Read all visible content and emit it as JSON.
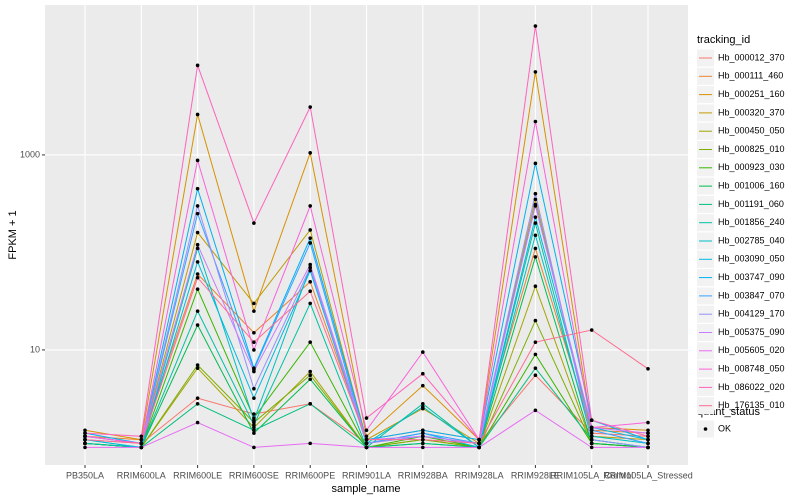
{
  "chart_data": {
    "type": "line",
    "x_label": "sample_name",
    "y_label": "FPKM + 1",
    "categories": [
      "PB350LA",
      "RRIM600LA",
      "RRIM600LE",
      "RRIM600SE",
      "RRIM600PE",
      "RRIM901LA",
      "RRIM928BA",
      "RRIM928LA",
      "RRIM928LE",
      "RRIM105LA_Control",
      "RRIM105LA_Stressed"
    ],
    "ylim": [
      0.66,
      34500
    ],
    "yticks": [
      10,
      1000
    ],
    "log_y": true,
    "grid": true,
    "legend_title": "tracking_id",
    "point_legend": {
      "title": "quant_status",
      "labels": [
        "OK"
      ]
    },
    "series": [
      {
        "name": "Hb_000012_370",
        "color": "#F8766D",
        "values": [
          1.2,
          1.1,
          3.2,
          2.2,
          2.8,
          1.1,
          1.3,
          1.1,
          5.5,
          1.4,
          1.3
        ]
      },
      {
        "name": "Hb_000111_460",
        "color": "#EA8331",
        "values": [
          1.3,
          1.2,
          60,
          15,
          50,
          1.2,
          1.5,
          1.2,
          110,
          1.5,
          1.4
        ]
      },
      {
        "name": "Hb_000251_160",
        "color": "#D89000",
        "values": [
          1.5,
          1.2,
          2600,
          25,
          1050,
          1.3,
          4.3,
          1.2,
          7100,
          1.6,
          1.5
        ]
      },
      {
        "name": "Hb_000320_370",
        "color": "#C09B00",
        "values": [
          1.3,
          1.1,
          160,
          30,
          170,
          1.2,
          2.5,
          1.1,
          350,
          1.3,
          1.2
        ]
      },
      {
        "name": "Hb_000450_050",
        "color": "#A3A500",
        "values": [
          1.1,
          1.0,
          6.5,
          1.6,
          6,
          1.0,
          1.2,
          1.0,
          45,
          1.1,
          1.0
        ]
      },
      {
        "name": "Hb_000825_010",
        "color": "#7CAE00",
        "values": [
          1.1,
          1.0,
          7,
          1.8,
          5.5,
          1.0,
          1.2,
          1.0,
          20,
          1.1,
          1.0
        ]
      },
      {
        "name": "Hb_000923_030",
        "color": "#39B600",
        "values": [
          1.1,
          1.0,
          42,
          2,
          12,
          1.0,
          1.3,
          1.0,
          9,
          1.1,
          1.0
        ]
      },
      {
        "name": "Hb_001006_160",
        "color": "#00BB4E",
        "values": [
          1.1,
          1.0,
          18,
          1.4,
          5,
          1.0,
          1.1,
          1.0,
          90,
          1.1,
          1.0
        ]
      },
      {
        "name": "Hb_001191_060",
        "color": "#00BF7D",
        "values": [
          1.1,
          1.0,
          2.8,
          1.5,
          2.8,
          1.0,
          1.1,
          1.0,
          6.5,
          1.2,
          1.0
        ]
      },
      {
        "name": "Hb_001856_240",
        "color": "#00C1A3",
        "values": [
          1.1,
          1.0,
          25,
          1.7,
          30,
          1.0,
          2.8,
          1.0,
          200,
          1.2,
          1.0
        ]
      },
      {
        "name": "Hb_002785_040",
        "color": "#00BFC4",
        "values": [
          1.2,
          1.0,
          110,
          1.9,
          70,
          1.1,
          2.6,
          1.0,
          150,
          1.3,
          1.1
        ]
      },
      {
        "name": "Hb_003090_050",
        "color": "#00BAE0",
        "values": [
          1.2,
          1.0,
          80,
          3.2,
          65,
          1.1,
          1.4,
          1.0,
          230,
          1.6,
          1.2
        ]
      },
      {
        "name": "Hb_003747_090",
        "color": "#00B0F6",
        "values": [
          1.4,
          1.1,
          450,
          6.5,
          140,
          1.2,
          1.5,
          1.2,
          820,
          1.9,
          1.2
        ]
      },
      {
        "name": "Hb_003847_070",
        "color": "#35A2FF",
        "values": [
          1.3,
          1.1,
          250,
          6.3,
          125,
          1.1,
          1.4,
          1.1,
          310,
          1.5,
          1.1
        ]
      },
      {
        "name": "Hb_004129_170",
        "color": "#9590FF",
        "values": [
          1.3,
          1.1,
          300,
          4,
          70,
          1.1,
          1.3,
          1.1,
          400,
          1.2,
          1.0
        ]
      },
      {
        "name": "Hb_005375_090",
        "color": "#C77CFF",
        "values": [
          1.3,
          1.1,
          120,
          6,
          75,
          1.2,
          1.3,
          1.1,
          300,
          1.6,
          1.4
        ]
      },
      {
        "name": "Hb_005605_020",
        "color": "#E76BF3",
        "values": [
          1.0,
          1.0,
          1.8,
          1.0,
          1.1,
          1.0,
          1.0,
          1.0,
          2.4,
          1.0,
          1.0
        ]
      },
      {
        "name": "Hb_008748_050",
        "color": "#FA62DB",
        "values": [
          1.3,
          1.1,
          880,
          10,
          300,
          1.5,
          9.5,
          1.2,
          2200,
          1.6,
          1.8
        ]
      },
      {
        "name": "Hb_086022_020",
        "color": "#FF62BC",
        "values": [
          1.4,
          1.3,
          8300,
          200,
          3100,
          2,
          5.7,
          1.2,
          21000,
          1.9,
          1.3
        ]
      },
      {
        "name": "Hb_176135_010",
        "color": "#FF6C91",
        "values": [
          1.2,
          1.1,
          55,
          12,
          40,
          1.2,
          1.2,
          1.1,
          12,
          16,
          6.4
        ]
      }
    ]
  }
}
